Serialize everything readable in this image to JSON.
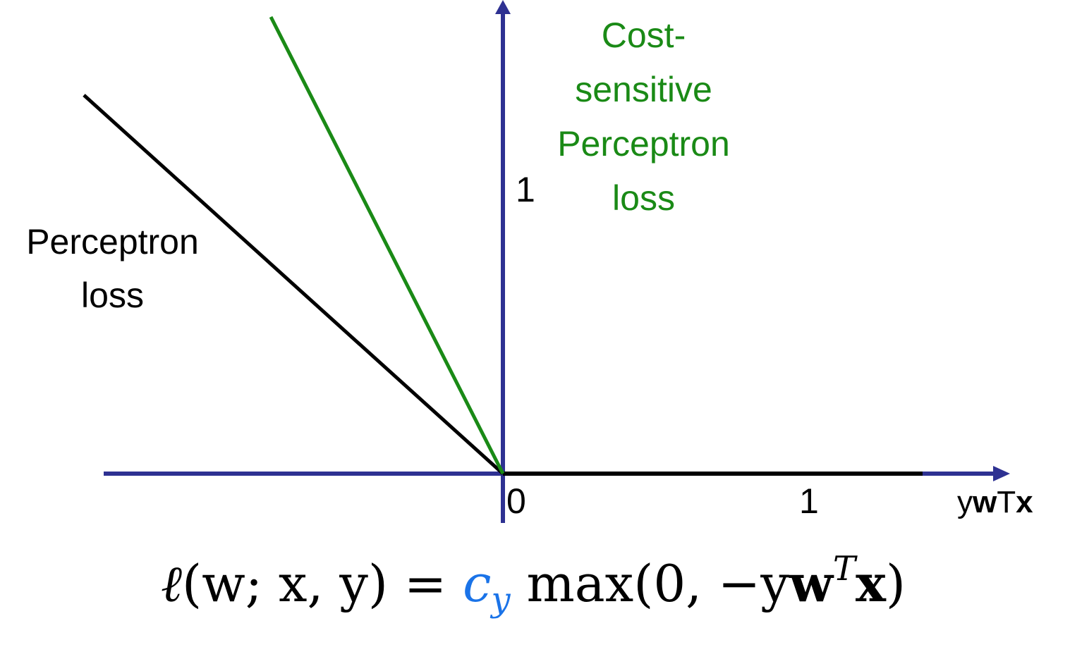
{
  "colors": {
    "axis": "#2e3192",
    "perceptron": "#000000",
    "cost_sensitive": "#1a8a16",
    "coefficient": "#1a73e8"
  },
  "labels": {
    "cost_sensitive_lines": [
      "Cost-",
      "sensitive",
      "Perceptron",
      "loss"
    ],
    "perceptron_lines": [
      "Perceptron",
      "loss"
    ],
    "y_tick": "1",
    "x_tick_origin": "0",
    "x_tick_one": "1",
    "x_axis_label": {
      "y": "y",
      "w": "w",
      "t": "T",
      "x": "x"
    }
  },
  "equation": {
    "ell": "ℓ",
    "args": "(w; x, y) = ",
    "coef": "c",
    "coef_sub": "y",
    "tail_prefix": " max(0, −y",
    "w": "w",
    "sup": "T",
    "x": "x",
    "close": ")"
  },
  "curves": {
    "perceptron_loss": {
      "slope_negative_side": -1,
      "slope_positive_side": 0
    },
    "cost_sensitive_perceptron_loss": {
      "slope_negative_side": -2.3
    }
  }
}
